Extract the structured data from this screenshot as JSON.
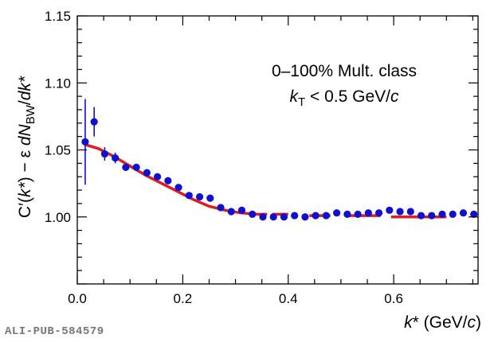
{
  "chart_data": {
    "type": "scatter",
    "xlabel": {
      "main": "k* (GeV/",
      "italic_tail": "c",
      "close": ")"
    },
    "ylabel": "C′(k*) − ε dN_BW/dk*",
    "ylabel_parts": {
      "a": "C′(",
      "b": "k*",
      "c": ") − ε ",
      "d": "dN",
      "sub": "BW",
      "e": "/",
      "f": "dk*"
    },
    "xlim": [
      0,
      0.76
    ],
    "ylim": [
      0.95,
      1.15
    ],
    "xticks": [
      0,
      0.2,
      0.4,
      0.6
    ],
    "xtick_labels": [
      "0.0",
      "0.2",
      "0.4",
      "0.6"
    ],
    "yticks": [
      1.0,
      1.05,
      1.1,
      1.15
    ],
    "ytick_labels": [
      "1.00",
      "1.05",
      "1.10",
      "1.15"
    ],
    "annotations": {
      "line1": "0–100% Mult. class",
      "line2_k": "k",
      "line2_sub": "T",
      "line2_rest": " < 0.5 GeV/",
      "line2_c": "c"
    },
    "series": [
      {
        "kind": "points",
        "color": "#1010d0",
        "x": [
          0.015,
          0.032,
          0.052,
          0.072,
          0.092,
          0.112,
          0.132,
          0.152,
          0.172,
          0.192,
          0.212,
          0.232,
          0.252,
          0.272,
          0.292,
          0.312,
          0.332,
          0.352,
          0.372,
          0.392,
          0.412,
          0.432,
          0.452,
          0.472,
          0.492,
          0.512,
          0.532,
          0.552,
          0.572,
          0.592,
          0.612,
          0.632,
          0.652,
          0.672,
          0.692,
          0.712,
          0.732,
          0.752
        ],
        "y": [
          1.056,
          1.071,
          1.047,
          1.044,
          1.037,
          1.037,
          1.033,
          1.03,
          1.027,
          1.022,
          1.016,
          1.015,
          1.014,
          1.007,
          1.004,
          1.005,
          1.002,
          1.0,
          1.0,
          1.0,
          1.001,
          1.0,
          1.001,
          1.001,
          1.003,
          1.002,
          1.002,
          1.003,
          1.003,
          1.005,
          1.004,
          1.004,
          1.001,
          1.001,
          1.002,
          1.002,
          1.003,
          1.002
        ],
        "err": [
          0.032,
          0.011,
          0.005,
          0.004,
          0.0025,
          0.002,
          0.0015,
          0.0012,
          0.001,
          0.001,
          0.001,
          0.001,
          0.001,
          0.001,
          0.001,
          0.001,
          0.001,
          0.001,
          0.001,
          0.001,
          0.001,
          0.001,
          0.001,
          0.001,
          0.001,
          0.001,
          0.001,
          0.001,
          0.001,
          0.001,
          0.001,
          0.001,
          0.001,
          0.001,
          0.001,
          0.001,
          0.001,
          0.001
        ]
      },
      {
        "kind": "fit",
        "color": "#e21b1b",
        "segments": [
          {
            "x": [
              0.015,
              0.04,
              0.07,
              0.1,
              0.13,
              0.16,
              0.19,
              0.22,
              0.25,
              0.28,
              0.31,
              0.34,
              0.36
            ],
            "y": [
              1.054,
              1.051,
              1.045,
              1.038,
              1.031,
              1.025,
              1.019,
              1.013,
              1.008,
              1.005,
              1.003,
              1.002,
              1.002
            ]
          },
          {
            "x": [
              0.37,
              0.4
            ],
            "y": [
              1.002,
              1.002
            ]
          },
          {
            "x": [
              0.44,
              0.48
            ],
            "y": [
              1.001,
              1.001
            ]
          },
          {
            "x": [
              0.515,
              0.575
            ],
            "y": [
              1.001,
              1.001
            ]
          },
          {
            "x": [
              0.595,
              0.7
            ],
            "y": [
              1.0,
              1.0
            ]
          }
        ]
      }
    ]
  },
  "footer": {
    "publication_id": "ALI-PUB-584579"
  }
}
